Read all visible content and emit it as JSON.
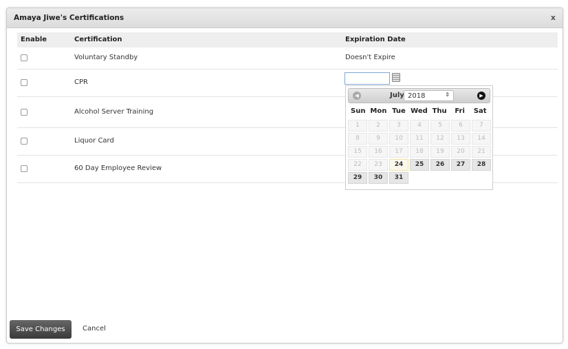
{
  "dialog": {
    "title": "Amaya Jiwe's Certifications",
    "close": "x"
  },
  "columns": {
    "enable": "Enable",
    "certification": "Certification",
    "expiration": "Expiration Date"
  },
  "rows": [
    {
      "name": "Voluntary Standby",
      "expiration": "Doesn't Expire",
      "checked": false
    },
    {
      "name": "CPR",
      "expiration": "",
      "checked": false
    },
    {
      "name": "Alcohol Server Training",
      "expiration": "",
      "checked": false
    },
    {
      "name": "Liquor Card",
      "expiration": "",
      "checked": false
    },
    {
      "name": "60 Day Employee Review",
      "expiration": "",
      "checked": false
    }
  ],
  "datepicker": {
    "month": "July",
    "year": "2018",
    "weekdays": [
      "Sun",
      "Mon",
      "Tue",
      "Wed",
      "Thu",
      "Fri",
      "Sat"
    ],
    "days": 31,
    "first_enabled": 24,
    "today": 24,
    "prev_icon": "circle-arrow-left-icon",
    "next_icon": "circle-arrow-right-icon"
  },
  "footer": {
    "save": "Save Changes",
    "cancel": "Cancel"
  }
}
